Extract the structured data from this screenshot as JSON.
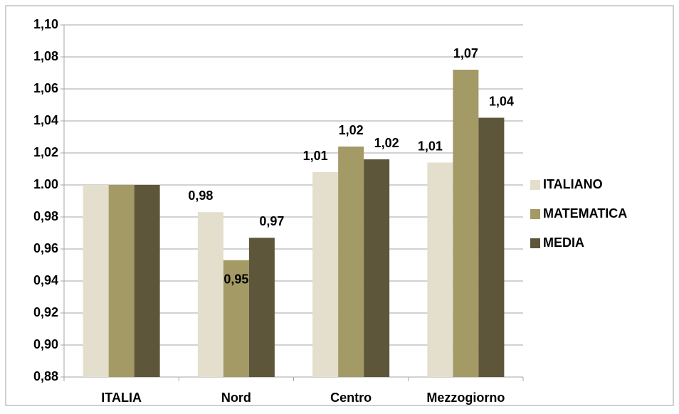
{
  "chart_data": {
    "type": "bar",
    "categories": [
      "ITALIA",
      "Nord",
      "Centro",
      "Mezzogiorno"
    ],
    "series": [
      {
        "name": "ITALIANO",
        "color": "#e3dfcc",
        "values": [
          1.0,
          0.983,
          1.008,
          1.014
        ],
        "value_labels": [
          null,
          "0,98",
          "1,01",
          "1,01"
        ]
      },
      {
        "name": "MATEMATICA",
        "color": "#a39a66",
        "values": [
          1.0,
          0.953,
          1.024,
          1.072
        ],
        "value_labels": [
          null,
          "0,95",
          "1,02",
          "1,07"
        ]
      },
      {
        "name": "MEDIA",
        "color": "#5e563a",
        "values": [
          1.0,
          0.967,
          1.016,
          1.042
        ],
        "value_labels": [
          null,
          "0,97",
          "1,02",
          "1,04"
        ]
      }
    ],
    "ylim": [
      0.88,
      1.1
    ],
    "yticks": [
      {
        "value": 0.88,
        "label": "0,88"
      },
      {
        "value": 0.9,
        "label": "0,90"
      },
      {
        "value": 0.92,
        "label": "0,92"
      },
      {
        "value": 0.94,
        "label": "0,94"
      },
      {
        "value": 0.96,
        "label": "0,96"
      },
      {
        "value": 0.98,
        "label": "0,98"
      },
      {
        "value": 1.0,
        "label": "1.00"
      },
      {
        "value": 1.02,
        "label": "1,02"
      },
      {
        "value": 1.04,
        "label": "1,04"
      },
      {
        "value": 1.06,
        "label": "1,06"
      },
      {
        "value": 1.08,
        "label": "1,08"
      },
      {
        "value": 1.1,
        "label": "1,10"
      }
    ],
    "grid": true,
    "legend": "right"
  }
}
